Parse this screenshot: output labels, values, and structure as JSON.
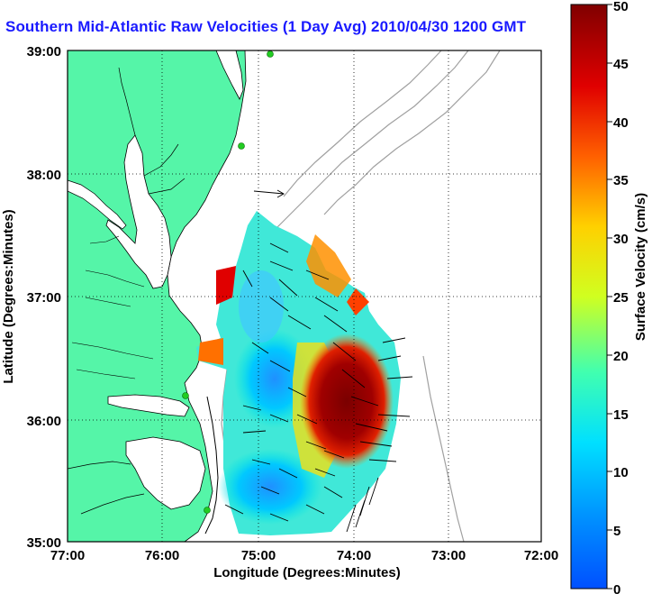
{
  "title": "Southern Mid-Atlantic Raw Velocities (1 Day Avg) 2010/04/30 1200 GMT",
  "map": {
    "xlabel": "Longitude (Degrees:Minutes)",
    "ylabel": "Latitude (Degrees:Minutes)",
    "lon_range": [
      -77,
      -72
    ],
    "lat_range": [
      35,
      39
    ],
    "x_ticks": [
      "77:00",
      "76:00",
      "75:00",
      "74:00",
      "73:00",
      "72:00"
    ],
    "y_ticks": [
      "35:00",
      "36:00",
      "37:00",
      "38:00",
      "39:00"
    ],
    "grid": "dotted",
    "land_color": "#55f5a8",
    "coast_color": "#000000",
    "bathymetry_color": "#a0a0a0",
    "station_color": "#22cc22"
  },
  "colorbar": {
    "label": "Surface Velocity (cm/s)",
    "min": 0,
    "max": 50,
    "ticks": [
      "0",
      "5",
      "10",
      "15",
      "20",
      "25",
      "30",
      "35",
      "40",
      "45",
      "50"
    ]
  }
}
